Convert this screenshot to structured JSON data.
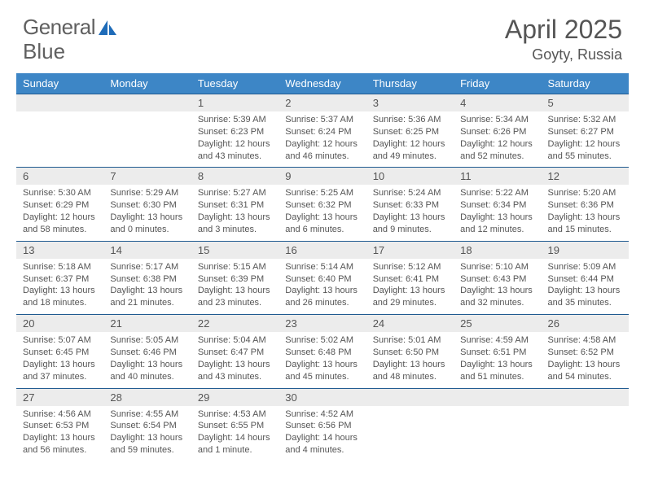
{
  "logo": {
    "text1": "General",
    "text2": "Blue"
  },
  "title": "April 2025",
  "location": "Goyty, Russia",
  "columns": [
    "Sunday",
    "Monday",
    "Tuesday",
    "Wednesday",
    "Thursday",
    "Friday",
    "Saturday"
  ],
  "colors": {
    "header_bg": "#3d86c6",
    "header_text": "#ffffff",
    "daynum_bg": "#ececec",
    "border_top": "#1f5a90",
    "text": "#555555",
    "logo_blue": "#1e6bb8"
  },
  "weeks": [
    [
      null,
      null,
      {
        "n": "1",
        "sunrise": "5:39 AM",
        "sunset": "6:23 PM",
        "daylight": "12 hours and 43 minutes."
      },
      {
        "n": "2",
        "sunrise": "5:37 AM",
        "sunset": "6:24 PM",
        "daylight": "12 hours and 46 minutes."
      },
      {
        "n": "3",
        "sunrise": "5:36 AM",
        "sunset": "6:25 PM",
        "daylight": "12 hours and 49 minutes."
      },
      {
        "n": "4",
        "sunrise": "5:34 AM",
        "sunset": "6:26 PM",
        "daylight": "12 hours and 52 minutes."
      },
      {
        "n": "5",
        "sunrise": "5:32 AM",
        "sunset": "6:27 PM",
        "daylight": "12 hours and 55 minutes."
      }
    ],
    [
      {
        "n": "6",
        "sunrise": "5:30 AM",
        "sunset": "6:29 PM",
        "daylight": "12 hours and 58 minutes."
      },
      {
        "n": "7",
        "sunrise": "5:29 AM",
        "sunset": "6:30 PM",
        "daylight": "13 hours and 0 minutes."
      },
      {
        "n": "8",
        "sunrise": "5:27 AM",
        "sunset": "6:31 PM",
        "daylight": "13 hours and 3 minutes."
      },
      {
        "n": "9",
        "sunrise": "5:25 AM",
        "sunset": "6:32 PM",
        "daylight": "13 hours and 6 minutes."
      },
      {
        "n": "10",
        "sunrise": "5:24 AM",
        "sunset": "6:33 PM",
        "daylight": "13 hours and 9 minutes."
      },
      {
        "n": "11",
        "sunrise": "5:22 AM",
        "sunset": "6:34 PM",
        "daylight": "13 hours and 12 minutes."
      },
      {
        "n": "12",
        "sunrise": "5:20 AM",
        "sunset": "6:36 PM",
        "daylight": "13 hours and 15 minutes."
      }
    ],
    [
      {
        "n": "13",
        "sunrise": "5:18 AM",
        "sunset": "6:37 PM",
        "daylight": "13 hours and 18 minutes."
      },
      {
        "n": "14",
        "sunrise": "5:17 AM",
        "sunset": "6:38 PM",
        "daylight": "13 hours and 21 minutes."
      },
      {
        "n": "15",
        "sunrise": "5:15 AM",
        "sunset": "6:39 PM",
        "daylight": "13 hours and 23 minutes."
      },
      {
        "n": "16",
        "sunrise": "5:14 AM",
        "sunset": "6:40 PM",
        "daylight": "13 hours and 26 minutes."
      },
      {
        "n": "17",
        "sunrise": "5:12 AM",
        "sunset": "6:41 PM",
        "daylight": "13 hours and 29 minutes."
      },
      {
        "n": "18",
        "sunrise": "5:10 AM",
        "sunset": "6:43 PM",
        "daylight": "13 hours and 32 minutes."
      },
      {
        "n": "19",
        "sunrise": "5:09 AM",
        "sunset": "6:44 PM",
        "daylight": "13 hours and 35 minutes."
      }
    ],
    [
      {
        "n": "20",
        "sunrise": "5:07 AM",
        "sunset": "6:45 PM",
        "daylight": "13 hours and 37 minutes."
      },
      {
        "n": "21",
        "sunrise": "5:05 AM",
        "sunset": "6:46 PM",
        "daylight": "13 hours and 40 minutes."
      },
      {
        "n": "22",
        "sunrise": "5:04 AM",
        "sunset": "6:47 PM",
        "daylight": "13 hours and 43 minutes."
      },
      {
        "n": "23",
        "sunrise": "5:02 AM",
        "sunset": "6:48 PM",
        "daylight": "13 hours and 45 minutes."
      },
      {
        "n": "24",
        "sunrise": "5:01 AM",
        "sunset": "6:50 PM",
        "daylight": "13 hours and 48 minutes."
      },
      {
        "n": "25",
        "sunrise": "4:59 AM",
        "sunset": "6:51 PM",
        "daylight": "13 hours and 51 minutes."
      },
      {
        "n": "26",
        "sunrise": "4:58 AM",
        "sunset": "6:52 PM",
        "daylight": "13 hours and 54 minutes."
      }
    ],
    [
      {
        "n": "27",
        "sunrise": "4:56 AM",
        "sunset": "6:53 PM",
        "daylight": "13 hours and 56 minutes."
      },
      {
        "n": "28",
        "sunrise": "4:55 AM",
        "sunset": "6:54 PM",
        "daylight": "13 hours and 59 minutes."
      },
      {
        "n": "29",
        "sunrise": "4:53 AM",
        "sunset": "6:55 PM",
        "daylight": "14 hours and 1 minute."
      },
      {
        "n": "30",
        "sunrise": "4:52 AM",
        "sunset": "6:56 PM",
        "daylight": "14 hours and 4 minutes."
      },
      null,
      null,
      null
    ]
  ],
  "labels": {
    "sunrise": "Sunrise:",
    "sunset": "Sunset:",
    "daylight": "Daylight:"
  }
}
